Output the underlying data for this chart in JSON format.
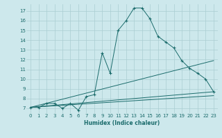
{
  "bg_color": "#cde8ec",
  "grid_color": "#aacdd2",
  "line_color": "#1a6b6b",
  "xlabel": "Humidex (Indice chaleur)",
  "xlim": [
    -0.5,
    23.5
  ],
  "ylim": [
    6.5,
    17.7
  ],
  "yticks": [
    7,
    8,
    9,
    10,
    11,
    12,
    13,
    14,
    15,
    16,
    17
  ],
  "xticks": [
    0,
    1,
    2,
    3,
    4,
    5,
    6,
    7,
    8,
    9,
    10,
    11,
    12,
    13,
    14,
    15,
    16,
    17,
    18,
    19,
    20,
    21,
    22,
    23
  ],
  "main_x": [
    0,
    1,
    2,
    3,
    4,
    5,
    6,
    7,
    8,
    9,
    10,
    11,
    12,
    13,
    14,
    15,
    16,
    17,
    18,
    19,
    20,
    21,
    22,
    23
  ],
  "main_y": [
    7.1,
    7.1,
    7.5,
    7.5,
    7.0,
    7.5,
    6.8,
    8.2,
    8.4,
    12.7,
    10.6,
    15.0,
    16.0,
    17.3,
    17.3,
    16.2,
    14.4,
    13.8,
    13.2,
    11.9,
    11.1,
    10.6,
    10.0,
    8.7
  ],
  "trend_lines": [
    {
      "x": [
        0,
        23
      ],
      "y": [
        7.1,
        8.7
      ]
    },
    {
      "x": [
        0,
        23
      ],
      "y": [
        7.1,
        11.9
      ]
    },
    {
      "x": [
        0,
        23
      ],
      "y": [
        7.1,
        8.3
      ]
    }
  ]
}
